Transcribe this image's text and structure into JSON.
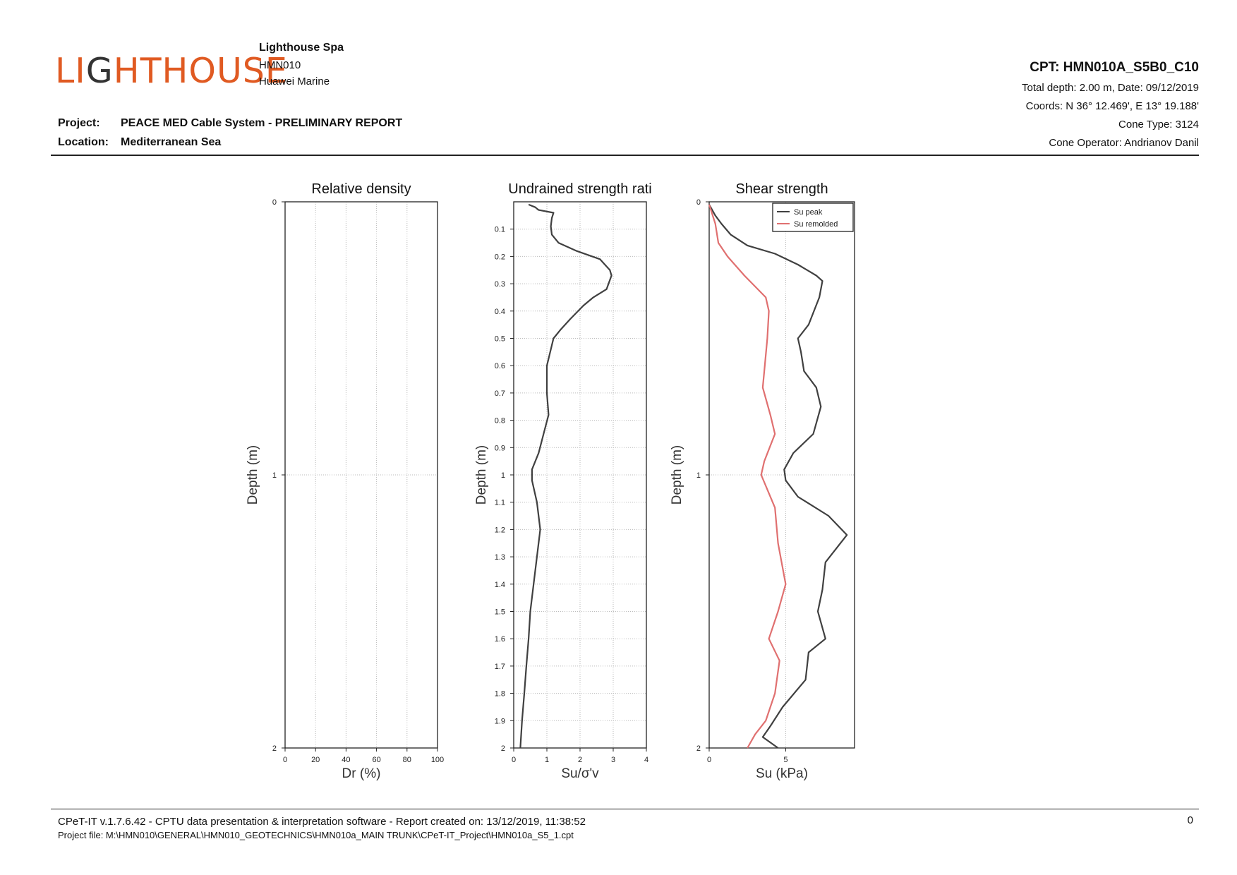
{
  "header": {
    "logo_text": "LIGHTHOUSE",
    "company": "Lighthouse Spa",
    "code": "HMN010",
    "client": "Huawei Marine",
    "project_label": "Project:",
    "project": "PEACE MED Cable System - PRELIMINARY REPORT",
    "location_label": "Location:",
    "location": "Mediterranean Sea",
    "cpt_id": "CPT: HMN010A_S5B0_C10",
    "total_depth_date": "Total depth: 2.00 m, Date: 09/12/2019",
    "coords": "Coords: N 36° 12.469', E 13° 19.188'",
    "cone_type": "Cone Type: 3124",
    "cone_operator": "Cone Operator: Andrianov Danil"
  },
  "footer": {
    "software": "CPeT-IT v.1.7.6.42 - CPTU data presentation & interpretation software - Report created on: 13/12/2019, 11:38:52",
    "project_file": "Project file: M:\\HMN010\\GENERAL\\HMN010_GEOTECHNICS\\HMN010a_MAIN TRUNK\\CPeT-IT_Project\\HMN010a_S5_1.cpt",
    "page_number": "0"
  },
  "colors": {
    "brand": "#e05a22",
    "logo_dark": "#333333",
    "peak": "#404040",
    "remolded": "#e07070"
  },
  "chart_data": [
    {
      "type": "line",
      "title": "Relative density",
      "xlabel": "Dr (%)",
      "ylabel": "Depth (m)",
      "xlim": [
        0,
        100
      ],
      "ylim": [
        0,
        2
      ],
      "y_inverted": true,
      "xticks": [
        "0",
        "20",
        "40",
        "60",
        "80",
        "100"
      ],
      "yticks": [
        "0",
        "1",
        "2"
      ],
      "series": []
    },
    {
      "type": "line",
      "title": "Undrained strength rati",
      "xlabel": "Su/σ'v",
      "ylabel": "Depth (m)",
      "xlim": [
        0,
        4
      ],
      "ylim": [
        0,
        2
      ],
      "y_inverted": true,
      "xticks": [
        "0",
        "1",
        "2",
        "3",
        "4"
      ],
      "yticks": [
        "0.1",
        "0.2",
        "0.3",
        "0.4",
        "0.5",
        "0.6",
        "0.7",
        "0.8",
        "0.9",
        "1",
        "1.1",
        "1.2",
        "1.3",
        "1.4",
        "1.5",
        "1.6",
        "1.7",
        "1.8",
        "1.9",
        "2"
      ],
      "series": [
        {
          "points": [
            [
              0.45,
              0.01
            ],
            [
              0.65,
              0.02
            ],
            [
              0.75,
              0.03
            ],
            [
              1.2,
              0.04
            ],
            [
              1.15,
              0.06
            ],
            [
              1.12,
              0.09
            ],
            [
              1.15,
              0.12
            ],
            [
              1.35,
              0.15
            ],
            [
              1.9,
              0.18
            ],
            [
              2.6,
              0.21
            ],
            [
              2.9,
              0.25
            ],
            [
              2.95,
              0.27
            ],
            [
              2.8,
              0.32
            ],
            [
              2.4,
              0.35
            ],
            [
              2.1,
              0.38
            ],
            [
              1.7,
              0.43
            ],
            [
              1.4,
              0.47
            ],
            [
              1.2,
              0.5
            ],
            [
              1.1,
              0.55
            ],
            [
              1.0,
              0.6
            ],
            [
              1.0,
              0.7
            ],
            [
              1.05,
              0.78
            ],
            [
              0.9,
              0.85
            ],
            [
              0.75,
              0.92
            ],
            [
              0.55,
              0.98
            ],
            [
              0.55,
              1.02
            ],
            [
              0.7,
              1.1
            ],
            [
              0.8,
              1.2
            ],
            [
              0.7,
              1.3
            ],
            [
              0.6,
              1.4
            ],
            [
              0.5,
              1.5
            ],
            [
              0.45,
              1.6
            ],
            [
              0.38,
              1.7
            ],
            [
              0.32,
              1.8
            ],
            [
              0.25,
              1.9
            ],
            [
              0.2,
              2.0
            ]
          ]
        }
      ]
    },
    {
      "type": "line",
      "title": "Shear strength",
      "xlabel": "Su (kPa)",
      "ylabel": "Depth (m)",
      "xlim": [
        0,
        9.5
      ],
      "ylim": [
        0,
        2
      ],
      "y_inverted": true,
      "xticks": [
        "0",
        "5"
      ],
      "yticks": [
        "0",
        "1",
        "2"
      ],
      "legend_position": "top-right",
      "series": [
        {
          "name": "Su peak",
          "points": [
            [
              0,
              0.01
            ],
            [
              0.4,
              0.05
            ],
            [
              0.8,
              0.08
            ],
            [
              1.4,
              0.12
            ],
            [
              2.5,
              0.16
            ],
            [
              4.3,
              0.19
            ],
            [
              5.8,
              0.23
            ],
            [
              7.0,
              0.27
            ],
            [
              7.4,
              0.29
            ],
            [
              7.2,
              0.35
            ],
            [
              6.5,
              0.45
            ],
            [
              5.8,
              0.5
            ],
            [
              6.0,
              0.55
            ],
            [
              6.2,
              0.62
            ],
            [
              7.0,
              0.68
            ],
            [
              7.3,
              0.75
            ],
            [
              6.8,
              0.85
            ],
            [
              5.5,
              0.92
            ],
            [
              4.9,
              0.98
            ],
            [
              5.0,
              1.02
            ],
            [
              5.8,
              1.08
            ],
            [
              7.8,
              1.15
            ],
            [
              9.0,
              1.22
            ],
            [
              7.6,
              1.32
            ],
            [
              7.4,
              1.42
            ],
            [
              7.1,
              1.5
            ],
            [
              7.6,
              1.6
            ],
            [
              6.5,
              1.65
            ],
            [
              6.3,
              1.75
            ],
            [
              4.8,
              1.85
            ],
            [
              4.0,
              1.92
            ],
            [
              3.5,
              1.96
            ],
            [
              4.5,
              2.0
            ]
          ]
        },
        {
          "name": "Su remolded",
          "points": [
            [
              0,
              0.01
            ],
            [
              0.4,
              0.08
            ],
            [
              0.6,
              0.15
            ],
            [
              1.2,
              0.2
            ],
            [
              2.3,
              0.27
            ],
            [
              3.7,
              0.35
            ],
            [
              3.9,
              0.4
            ],
            [
              3.8,
              0.5
            ],
            [
              3.6,
              0.62
            ],
            [
              3.5,
              0.68
            ],
            [
              4.0,
              0.78
            ],
            [
              4.3,
              0.85
            ],
            [
              3.6,
              0.95
            ],
            [
              3.4,
              1.0
            ],
            [
              4.3,
              1.12
            ],
            [
              4.5,
              1.25
            ],
            [
              5.0,
              1.4
            ],
            [
              4.5,
              1.5
            ],
            [
              3.9,
              1.6
            ],
            [
              4.6,
              1.68
            ],
            [
              4.3,
              1.8
            ],
            [
              3.7,
              1.9
            ],
            [
              3.0,
              1.95
            ],
            [
              2.5,
              2.0
            ]
          ]
        }
      ]
    }
  ]
}
